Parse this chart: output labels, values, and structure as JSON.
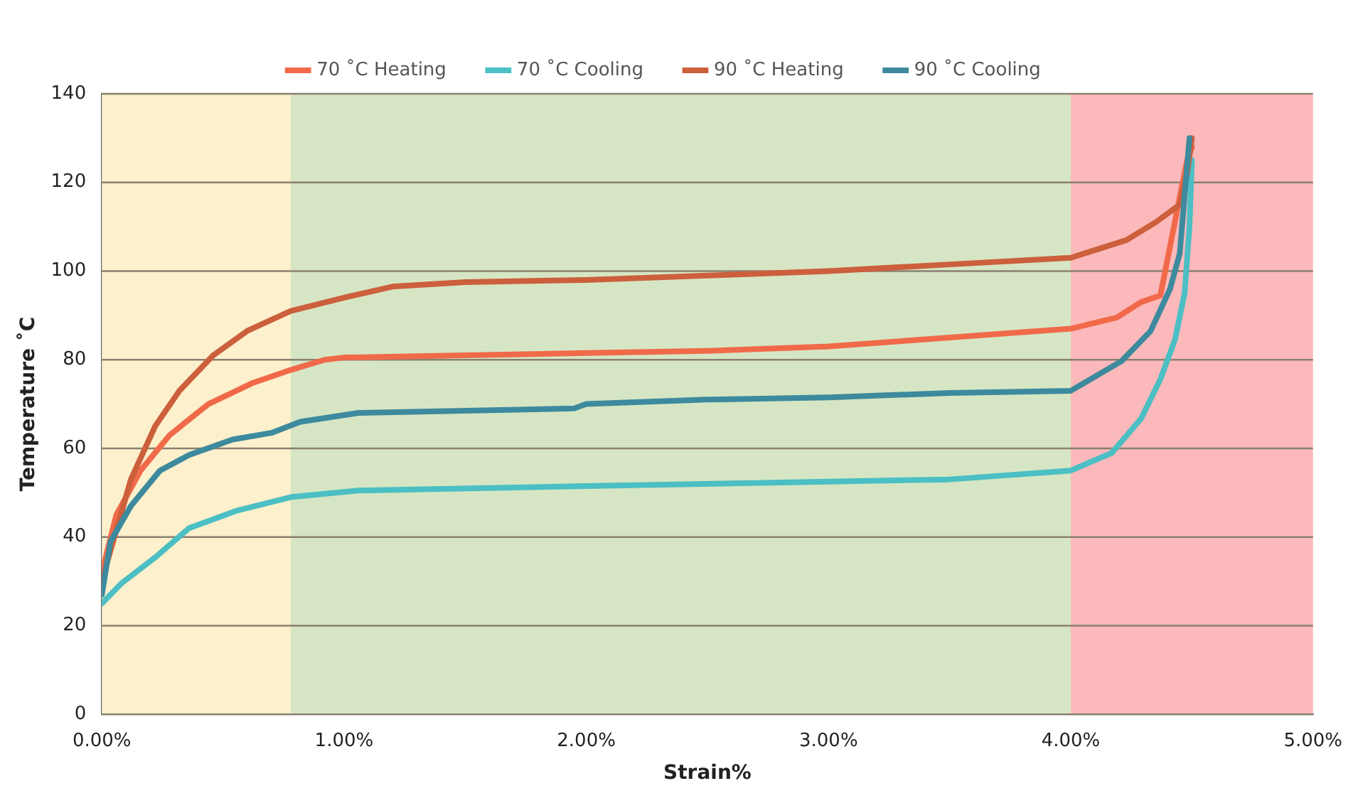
{
  "chart_data": {
    "type": "line",
    "xlabel": "Strain%",
    "ylabel": "Temperature ˚C",
    "xlim": [
      0,
      5
    ],
    "ylim": [
      0,
      140
    ],
    "xticks": [
      {
        "value": 0,
        "label": "0.00%"
      },
      {
        "value": 1,
        "label": "1.00%"
      },
      {
        "value": 2,
        "label": "2.00%"
      },
      {
        "value": 3,
        "label": "3.00%"
      },
      {
        "value": 4,
        "label": "4.00%"
      },
      {
        "value": 5,
        "label": "5.00%"
      }
    ],
    "yticks": [
      0,
      20,
      40,
      60,
      80,
      100,
      120,
      140
    ],
    "grid": "y",
    "legend": "top",
    "marker": "none",
    "line_style": "solid",
    "bands": [
      {
        "axis": "x",
        "from": 0,
        "to": 0.78,
        "color": "#fdf0cc"
      },
      {
        "axis": "x",
        "from": 0.78,
        "to": 4.0,
        "color": "#d6e6c4"
      },
      {
        "axis": "x",
        "from": 4.0,
        "to": 5.0,
        "color": "#fbb9bb"
      }
    ],
    "series": [
      {
        "name": "70 ˚C Heating",
        "color": "#f06a4a",
        "x": [
          0,
          0.06,
          0.16,
          0.28,
          0.44,
          0.62,
          0.78,
          0.92,
          1.0,
          1.5,
          2.0,
          2.5,
          3.0,
          3.5,
          4.0,
          4.19,
          4.29,
          4.37,
          4.48,
          4.5
        ],
        "values": [
          32,
          45,
          55,
          63,
          70,
          74.7,
          77.7,
          80,
          80.5,
          81,
          81.5,
          82,
          83,
          85,
          87,
          89.5,
          93,
          94.5,
          125,
          128
        ]
      },
      {
        "name": "70 ˚C Cooling",
        "color": "#4bbfc4",
        "x": [
          0,
          0.08,
          0.22,
          0.36,
          0.56,
          0.78,
          1.06,
          2.0,
          3.0,
          3.5,
          4.0,
          4.17,
          4.29,
          4.37,
          4.43,
          4.47,
          4.49,
          4.5
        ],
        "values": [
          25,
          29.5,
          35.4,
          42,
          46,
          49,
          50.5,
          51.5,
          52.5,
          53,
          55,
          59,
          66.7,
          75.6,
          84.5,
          95,
          110,
          125
        ]
      },
      {
        "name": "90 ˚C Heating",
        "color": "#cc5f3c",
        "x": [
          0,
          0.036,
          0.12,
          0.22,
          0.32,
          0.46,
          0.6,
          0.78,
          1.0,
          1.2,
          1.5,
          2.0,
          2.5,
          3.0,
          3.5,
          4.0,
          4.23,
          4.35,
          4.45,
          4.48,
          4.5
        ],
        "values": [
          30,
          37,
          53,
          65,
          73,
          81,
          86.5,
          91,
          94,
          96.5,
          97.5,
          98,
          99,
          100,
          101.5,
          103,
          107,
          111,
          115,
          122,
          130
        ]
      },
      {
        "name": "90 ˚C Cooling",
        "color": "#3d8a9e",
        "x": [
          0,
          0.036,
          0.12,
          0.24,
          0.36,
          0.54,
          0.7,
          0.82,
          1.06,
          1.5,
          1.95,
          2.0,
          2.5,
          3.0,
          3.5,
          4.0,
          4.21,
          4.33,
          4.41,
          4.45,
          4.49
        ],
        "values": [
          27,
          39,
          47,
          55,
          58.5,
          62,
          63.5,
          66,
          68,
          68.5,
          69,
          70,
          71,
          71.5,
          72.5,
          73,
          79.7,
          86.5,
          96,
          104,
          130
        ]
      }
    ]
  }
}
